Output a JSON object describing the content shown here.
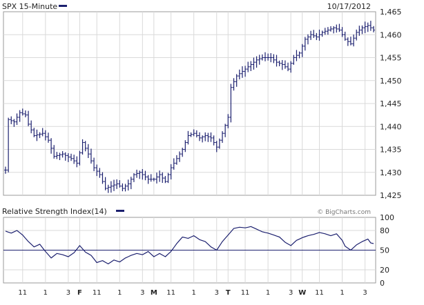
{
  "colors": {
    "series": "#1b1f6e",
    "grid": "#d9d9d9",
    "frame": "#9a9a9a",
    "text": "#222222",
    "reference_line": "#1b1f6e"
  },
  "chart_data": [
    {
      "type": "ohlc",
      "title": "SPX 15-Minute",
      "date_label": "10/17/2012",
      "y_axis_side": "right",
      "ylim": [
        1425,
        1465
      ],
      "y_ticks": [
        1425,
        1430,
        1435,
        1440,
        1445,
        1450,
        1455,
        1460,
        1465
      ],
      "y_tick_labels": [
        "1,425",
        "1,430",
        "1,435",
        "1,440",
        "1,445",
        "1,450",
        "1,455",
        "1,460",
        "1,465"
      ],
      "grid": true,
      "bar_count": 130,
      "session_labels": [
        {
          "text": "11",
          "bold": false,
          "bar": 6
        },
        {
          "text": "1",
          "bold": false,
          "bar": 14
        },
        {
          "text": "3",
          "bold": false,
          "bar": 22
        },
        {
          "text": "F",
          "bold": true,
          "bar": 26
        },
        {
          "text": "11",
          "bold": false,
          "bar": 32
        },
        {
          "text": "1",
          "bold": false,
          "bar": 40
        },
        {
          "text": "3",
          "bold": false,
          "bar": 48
        },
        {
          "text": "M",
          "bold": true,
          "bar": 52
        },
        {
          "text": "11",
          "bold": false,
          "bar": 58
        },
        {
          "text": "1",
          "bold": false,
          "bar": 66
        },
        {
          "text": "3",
          "bold": false,
          "bar": 74
        },
        {
          "text": "T",
          "bold": true,
          "bar": 78
        },
        {
          "text": "11",
          "bold": false,
          "bar": 84
        },
        {
          "text": "1",
          "bold": false,
          "bar": 92
        },
        {
          "text": "3",
          "bold": false,
          "bar": 100
        },
        {
          "text": "W",
          "bold": true,
          "bar": 104
        },
        {
          "text": "11",
          "bold": false,
          "bar": 110
        },
        {
          "text": "1",
          "bold": false,
          "bar": 118
        },
        {
          "text": "3",
          "bold": false,
          "bar": 126
        }
      ],
      "close_path": [
        [
          0,
          1430.5
        ],
        [
          1,
          1441.5
        ],
        [
          3,
          1441.0
        ],
        [
          5,
          1443.0
        ],
        [
          7,
          1442.5
        ],
        [
          8,
          1440.5
        ],
        [
          10,
          1438.0
        ],
        [
          13,
          1438.5
        ],
        [
          15,
          1437.0
        ],
        [
          17,
          1433.5
        ],
        [
          20,
          1434.0
        ],
        [
          23,
          1433.0
        ],
        [
          25,
          1432.0
        ],
        [
          27,
          1436.5
        ],
        [
          29,
          1434.0
        ],
        [
          31,
          1431.0
        ],
        [
          33,
          1429.5
        ],
        [
          35,
          1426.5
        ],
        [
          37,
          1427.0
        ],
        [
          39,
          1427.5
        ],
        [
          41,
          1426.5
        ],
        [
          43,
          1427.5
        ],
        [
          45,
          1429.5
        ],
        [
          47,
          1430.0
        ],
        [
          50,
          1428.5
        ],
        [
          52,
          1428.5
        ],
        [
          54,
          1429.5
        ],
        [
          56,
          1428.0
        ],
        [
          58,
          1431.0
        ],
        [
          60,
          1433.0
        ],
        [
          62,
          1435.0
        ],
        [
          64,
          1438.0
        ],
        [
          66,
          1438.5
        ],
        [
          68,
          1437.5
        ],
        [
          70,
          1438.0
        ],
        [
          72,
          1437.5
        ],
        [
          74,
          1435.5
        ],
        [
          76,
          1438.5
        ],
        [
          78,
          1442.0
        ],
        [
          79,
          1448.5
        ],
        [
          81,
          1451.0
        ],
        [
          83,
          1452.0
        ],
        [
          86,
          1453.5
        ],
        [
          88,
          1454.5
        ],
        [
          90,
          1455.0
        ],
        [
          93,
          1455.0
        ],
        [
          95,
          1454.0
        ],
        [
          97,
          1453.5
        ],
        [
          99,
          1452.5
        ],
        [
          101,
          1455.0
        ],
        [
          103,
          1456.0
        ],
        [
          105,
          1459.0
        ],
        [
          107,
          1460.0
        ],
        [
          109,
          1459.5
        ],
        [
          111,
          1460.5
        ],
        [
          113,
          1461.0
        ],
        [
          115,
          1461.5
        ],
        [
          117,
          1461.0
        ],
        [
          119,
          1459.0
        ],
        [
          121,
          1458.0
        ],
        [
          123,
          1460.5
        ],
        [
          125,
          1461.5
        ],
        [
          127,
          1462.0
        ],
        [
          129,
          1461.0
        ]
      ]
    },
    {
      "type": "line",
      "title": "Relative Strength Index",
      "period_label": "(14)",
      "watermark": "© BigCharts.com",
      "y_axis_side": "right",
      "ylim": [
        0,
        100
      ],
      "y_ticks": [
        0,
        20,
        50,
        80,
        100
      ],
      "y_tick_labels": [
        "0",
        "20",
        "50",
        "80",
        "100"
      ],
      "reference_value": 50,
      "grid": true,
      "path": [
        [
          0,
          79
        ],
        [
          2,
          76
        ],
        [
          4,
          80
        ],
        [
          6,
          73
        ],
        [
          8,
          63
        ],
        [
          10,
          55
        ],
        [
          12,
          59
        ],
        [
          14,
          48
        ],
        [
          16,
          38
        ],
        [
          18,
          45
        ],
        [
          20,
          43
        ],
        [
          22,
          40
        ],
        [
          24,
          46
        ],
        [
          26,
          57
        ],
        [
          28,
          47
        ],
        [
          30,
          42
        ],
        [
          32,
          31
        ],
        [
          34,
          34
        ],
        [
          36,
          29
        ],
        [
          38,
          35
        ],
        [
          40,
          32
        ],
        [
          42,
          38
        ],
        [
          44,
          42
        ],
        [
          46,
          45
        ],
        [
          48,
          43
        ],
        [
          50,
          48
        ],
        [
          52,
          40
        ],
        [
          54,
          45
        ],
        [
          56,
          40
        ],
        [
          58,
          48
        ],
        [
          60,
          60
        ],
        [
          62,
          70
        ],
        [
          64,
          68
        ],
        [
          66,
          72
        ],
        [
          68,
          66
        ],
        [
          70,
          63
        ],
        [
          72,
          55
        ],
        [
          74,
          50
        ],
        [
          76,
          63
        ],
        [
          78,
          73
        ],
        [
          80,
          83
        ],
        [
          82,
          85
        ],
        [
          84,
          84
        ],
        [
          86,
          86
        ],
        [
          88,
          82
        ],
        [
          90,
          78
        ],
        [
          92,
          76
        ],
        [
          94,
          73
        ],
        [
          96,
          70
        ],
        [
          98,
          62
        ],
        [
          100,
          57
        ],
        [
          102,
          65
        ],
        [
          104,
          69
        ],
        [
          106,
          72
        ],
        [
          108,
          74
        ],
        [
          110,
          77
        ],
        [
          112,
          75
        ],
        [
          114,
          72
        ],
        [
          116,
          75
        ],
        [
          118,
          65
        ],
        [
          119,
          56
        ],
        [
          121,
          50
        ],
        [
          123,
          58
        ],
        [
          125,
          63
        ],
        [
          127,
          67
        ],
        [
          128,
          61
        ],
        [
          129,
          60
        ]
      ]
    }
  ]
}
